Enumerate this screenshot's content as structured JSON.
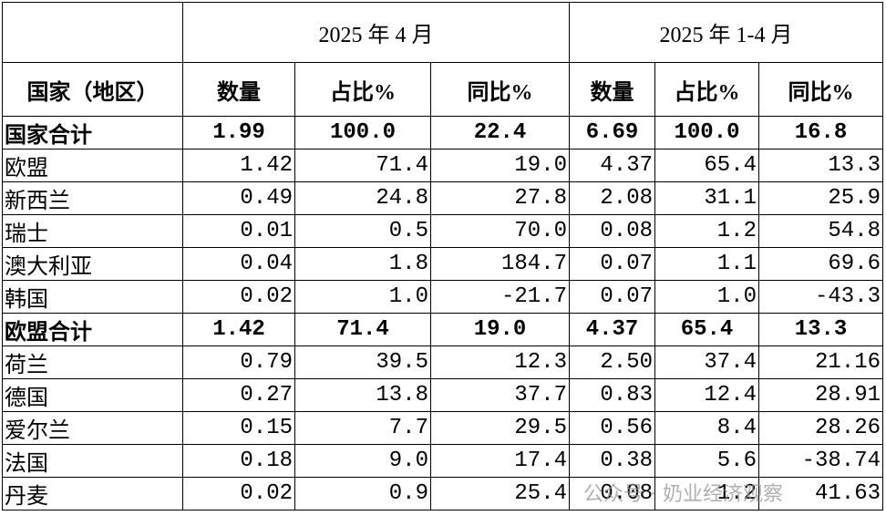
{
  "header": {
    "periods": [
      "2025 年 4 月",
      "2025 年 1-4 月"
    ],
    "columns": [
      "国家（地区）",
      "数量",
      "占比%",
      "同比%",
      "数量",
      "占比%",
      "同比%"
    ]
  },
  "table": {
    "rows": [
      [
        "国家合计",
        "1.99",
        "100.0",
        "22.4",
        "6.69",
        "100.0",
        "16.8"
      ],
      [
        "欧盟",
        "1.42",
        "71.4",
        "19.0",
        "4.37",
        "65.4",
        "13.3"
      ],
      [
        "新西兰",
        "0.49",
        "24.8",
        "27.8",
        "2.08",
        "31.1",
        "25.9"
      ],
      [
        "瑞士",
        "0.01",
        "0.5",
        "70.0",
        "0.08",
        "1.2",
        "54.8"
      ],
      [
        "澳大利亚",
        "0.04",
        "1.8",
        "184.7",
        "0.07",
        "1.1",
        "69.6"
      ],
      [
        "韩国",
        "0.02",
        "1.0",
        "-21.7",
        "0.07",
        "1.0",
        "-43.3"
      ],
      [
        "欧盟合计",
        "1.42",
        "71.4",
        "19.0",
        "4.37",
        "65.4",
        "13.3"
      ],
      [
        "荷兰",
        "0.79",
        "39.5",
        "12.3",
        "2.50",
        "37.4",
        "21.16"
      ],
      [
        "德国",
        "0.27",
        "13.8",
        "37.7",
        "0.83",
        "12.4",
        "28.91"
      ],
      [
        "爱尔兰",
        "0.15",
        "7.7",
        "29.5",
        "0.56",
        "8.4",
        "28.26"
      ],
      [
        "法国",
        "0.18",
        "9.0",
        "17.4",
        "0.38",
        "5.6",
        "-38.74"
      ],
      [
        "丹麦",
        "0.02",
        "0.9",
        "25.4",
        "0.08",
        "1.2",
        "41.63"
      ]
    ]
  },
  "watermark": "公众号 · 奶业经济观察"
}
